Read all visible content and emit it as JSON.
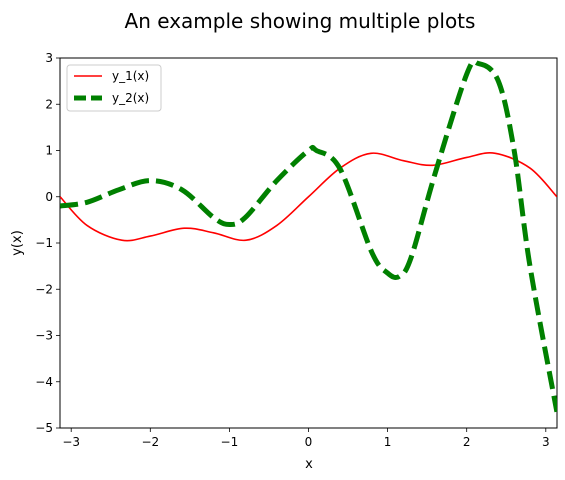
{
  "chart_data": {
    "type": "line",
    "title": "An example showing multiple plots",
    "xlabel": "x",
    "ylabel": "y(x)",
    "xlim": [
      -3.1416,
      3.1416
    ],
    "ylim": [
      -5,
      3
    ],
    "xticks": [
      -3,
      -2,
      -1,
      0,
      1,
      2,
      3
    ],
    "yticks": [
      -5,
      -4,
      -3,
      -2,
      -1,
      0,
      1,
      2,
      3
    ],
    "grid": false,
    "legend": "top-left",
    "series": [
      {
        "name": "y_1(x)",
        "color": "#ff0000",
        "style": "solid",
        "x": [
          -3.14,
          -2.8,
          -2.36,
          -2.0,
          -1.57,
          -1.2,
          -0.79,
          -0.4,
          0.0,
          0.4,
          0.79,
          1.2,
          1.57,
          2.0,
          2.36,
          2.8,
          3.14
        ],
        "y": [
          0.0,
          -0.62,
          -0.94,
          -0.85,
          -0.68,
          -0.78,
          -0.94,
          -0.62,
          0.0,
          0.62,
          0.94,
          0.78,
          0.68,
          0.85,
          0.94,
          0.62,
          0.0
        ]
      },
      {
        "name": "y_2(x)",
        "color": "#008000",
        "style": "dashed",
        "x": [
          -3.14,
          -2.8,
          -2.4,
          -2.0,
          -1.6,
          -1.2,
          -1.0,
          -0.8,
          -0.4,
          0.0,
          0.1,
          0.4,
          0.8,
          1.0,
          1.15,
          1.3,
          1.6,
          2.0,
          2.15,
          2.4,
          2.6,
          2.8,
          3.14
        ],
        "y": [
          -0.2,
          -0.12,
          0.15,
          0.35,
          0.15,
          -0.45,
          -0.6,
          -0.45,
          0.35,
          1.0,
          1.0,
          0.6,
          -1.2,
          -1.65,
          -1.72,
          -1.3,
          0.5,
          2.65,
          2.88,
          2.5,
          1.0,
          -1.5,
          -4.65
        ]
      }
    ]
  }
}
